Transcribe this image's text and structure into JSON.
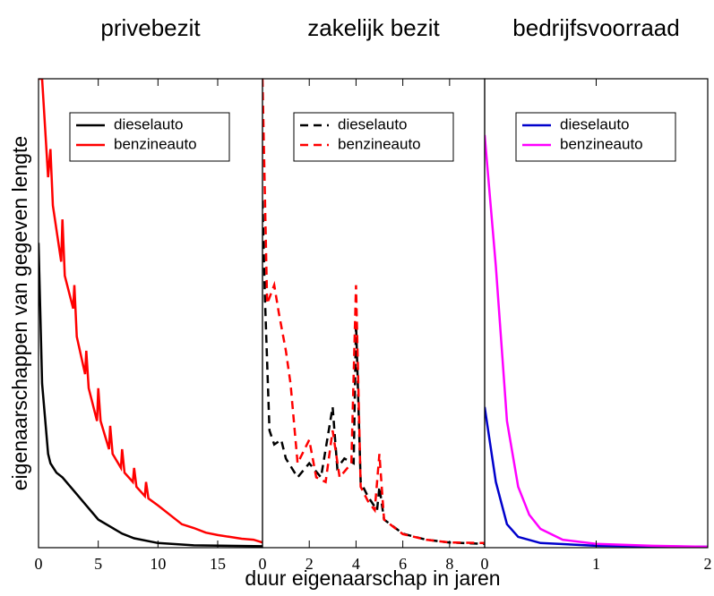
{
  "chart_data": [
    {
      "type": "line",
      "title": "privebezit",
      "ylabel": "eigenaarschappen van gegeven lengte",
      "xlim": [
        0,
        18.75
      ],
      "ylim": [
        0,
        100
      ],
      "xticks": [
        0,
        5,
        10,
        15
      ],
      "dashed": false,
      "series": [
        {
          "name": "dieselauto",
          "color": "#000000",
          "x": [
            0,
            0.3,
            0.8,
            1,
            1.5,
            2,
            3,
            4,
            5,
            6,
            7,
            8,
            10,
            13,
            18.75
          ],
          "values": [
            65,
            35,
            20,
            18,
            16,
            15,
            12,
            9,
            6,
            4.5,
            3,
            2,
            1,
            0.5,
            0.3
          ]
        },
        {
          "name": "benzineauto",
          "color": "#ff0000",
          "x": [
            0,
            0.3,
            0.8,
            1,
            1.2,
            1.9,
            2,
            2.2,
            2.9,
            3,
            3.2,
            3.9,
            4,
            4.2,
            4.9,
            5,
            5.2,
            5.9,
            6,
            6.2,
            6.9,
            7,
            7.2,
            7.9,
            8,
            8.2,
            8.9,
            9,
            9.2,
            10,
            11,
            12,
            13,
            14,
            15,
            16,
            17,
            18,
            18.75
          ],
          "values": [
            100,
            100,
            79,
            85,
            73,
            61,
            70,
            58,
            51,
            56,
            45,
            37,
            42,
            34,
            27,
            34,
            27,
            21,
            26,
            20,
            17,
            21,
            16,
            14,
            17,
            13,
            11,
            14,
            10.5,
            9,
            7,
            5,
            4.2,
            3.2,
            2.7,
            2.3,
            1.9,
            1.7,
            1.1
          ]
        }
      ]
    },
    {
      "type": "line",
      "title": "zakelijk bezit",
      "xlabel": "duur eigenaarschap in jaren",
      "xlim": [
        0,
        9.5
      ],
      "ylim": [
        0,
        100
      ],
      "xticks": [
        0,
        2,
        4,
        6,
        8
      ],
      "dashed": true,
      "series": [
        {
          "name": "dieselauto",
          "color": "#000000",
          "x": [
            0,
            0.1,
            0.3,
            0.5,
            0.8,
            1,
            1.5,
            2,
            2.5,
            3,
            3.2,
            3.5,
            3.9,
            4,
            4.2,
            4.5,
            4.9,
            5,
            5.2,
            6,
            7,
            8,
            9.5
          ],
          "values": [
            74,
            54,
            25,
            22,
            23,
            19,
            15,
            18,
            15,
            30,
            17,
            19,
            18,
            48,
            14,
            11,
            8,
            13,
            6,
            3,
            1.7,
            1.1,
            0.8
          ]
        },
        {
          "name": "benzineauto",
          "color": "#ff0000",
          "x": [
            0,
            0.2,
            0.5,
            0.7,
            1,
            1.2,
            1.5,
            2,
            2.3,
            2.7,
            3,
            3.3,
            3.8,
            4,
            4.2,
            4.5,
            4.8,
            5,
            5.2,
            6,
            7,
            8,
            9.5
          ],
          "values": [
            100,
            52,
            56,
            50,
            42,
            35,
            18,
            23,
            15,
            14,
            25,
            15,
            18,
            56,
            13,
            10,
            8,
            20,
            6,
            2.9,
            1.7,
            1.1,
            1
          ]
        }
      ]
    },
    {
      "type": "line",
      "title": "bedrijfsvoorraad",
      "xlim": [
        0,
        2
      ],
      "ylim": [
        0,
        100
      ],
      "xticks": [
        0,
        1,
        2
      ],
      "dashed": false,
      "series": [
        {
          "name": "dieselauto",
          "color": "#0000cc",
          "x": [
            0,
            0.1,
            0.2,
            0.3,
            0.5,
            1,
            2
          ],
          "values": [
            30,
            14,
            5,
            2.3,
            1,
            0.4,
            0.2
          ]
        },
        {
          "name": "benzineauto",
          "color": "#ff00ff",
          "x": [
            0,
            0.1,
            0.2,
            0.3,
            0.4,
            0.5,
            0.7,
            1,
            1.5,
            2
          ],
          "values": [
            88,
            60,
            27,
            13,
            7,
            4,
            1.7,
            0.8,
            0.4,
            0.2
          ]
        }
      ]
    }
  ]
}
